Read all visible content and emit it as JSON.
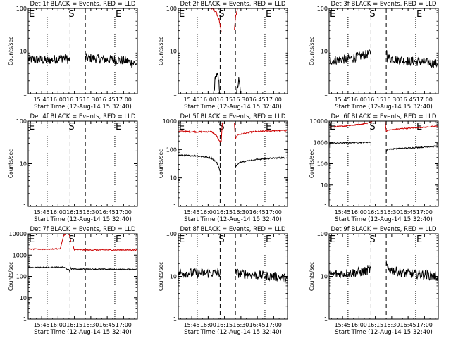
{
  "figure": {
    "xlabel": "Start Time (12-Aug-14 15:32:40)",
    "ylabel": "Counts/sec",
    "xticks": [
      "15:45",
      "16:00",
      "16:15",
      "16:30",
      "16:45",
      "17:00"
    ],
    "markers": {
      "left": "E",
      "middle": "S",
      "right": "E"
    },
    "colors": {
      "events": "#000000",
      "lld": "#cc0000"
    }
  },
  "chart_data": [
    {
      "type": "line",
      "title": "Det 1f BLACK = Events, RED = LLD",
      "x_range": [
        "15:32:40",
        "17:12:40"
      ],
      "y_scale": "log",
      "ylim": [
        1,
        100
      ],
      "yticks": [
        "1",
        "10",
        "100"
      ],
      "vlines": {
        "dotted": [
          "15:50",
          "16:52"
        ],
        "dashed": [
          "16:11",
          "16:25"
        ]
      },
      "series": [
        {
          "color": "black",
          "segments": [
            {
              "x": [
                "15:33",
                "15:50",
                "16:05",
                "16:11"
              ],
              "y": [
                6.5,
                6,
                7,
                6
              ]
            },
            {
              "x": [
                "16:25",
                "16:40",
                "17:00",
                "17:12"
              ],
              "y": [
                7,
                6.5,
                6,
                5
              ]
            }
          ]
        }
      ]
    },
    {
      "type": "line",
      "title": "Det 2f BLACK = Events, RED = LLD",
      "x_range": [
        "15:32:40",
        "17:12:40"
      ],
      "y_scale": "log",
      "ylim": [
        1,
        100
      ],
      "yticks": [
        "1",
        "10",
        "100"
      ],
      "vlines": {
        "dotted": [
          "15:50",
          "16:52"
        ],
        "dashed": [
          "16:11",
          "16:25"
        ]
      },
      "series": [
        {
          "color": "red",
          "segments": [
            {
              "x": [
                "16:03",
                "16:07",
                "16:10",
                "16:12"
              ],
              "y": [
                100,
                85,
                55,
                28
              ]
            },
            {
              "x": [
                "16:24",
                "16:25",
                "16:27"
              ],
              "y": [
                30,
                60,
                100
              ]
            }
          ]
        },
        {
          "color": "black",
          "segments": [
            {
              "x": [
                "16:05",
                "16:07",
                "16:09",
                "16:11"
              ],
              "y": [
                1,
                2.8,
                2.5,
                1
              ]
            },
            {
              "x": [
                "16:26",
                "16:28",
                "16:30"
              ],
              "y": [
                1,
                2,
                1
              ]
            }
          ]
        }
      ]
    },
    {
      "type": "line",
      "title": "Det 3f BLACK = Events, RED = LLD",
      "x_range": [
        "15:32:40",
        "17:12:40"
      ],
      "y_scale": "log",
      "ylim": [
        1,
        100
      ],
      "yticks": [
        "1",
        "10",
        "100"
      ],
      "vlines": {
        "dotted": [
          "15:50",
          "16:52"
        ],
        "dashed": [
          "16:11",
          "16:25"
        ]
      },
      "series": [
        {
          "color": "black",
          "segments": [
            {
              "x": [
                "15:33",
                "15:50",
                "16:05",
                "16:11"
              ],
              "y": [
                6,
                6.5,
                8,
                9
              ]
            },
            {
              "x": [
                "16:25",
                "16:26",
                "16:40",
                "17:00",
                "17:12"
              ],
              "y": [
                12,
                7,
                6,
                5.5,
                5
              ]
            }
          ]
        }
      ]
    },
    {
      "type": "line",
      "title": "Det 4f BLACK = Events, RED = LLD",
      "x_range": [
        "15:32:40",
        "17:12:40"
      ],
      "y_scale": "log",
      "ylim": [
        1,
        100
      ],
      "yticks": [
        "1",
        "10",
        "100"
      ],
      "vlines": {
        "dotted": [
          "15:50",
          "16:52"
        ],
        "dashed": [
          "16:11",
          "16:25"
        ]
      },
      "series": []
    },
    {
      "type": "line",
      "title": "Det 5f BLACK = Events, RED = LLD",
      "x_range": [
        "15:32:40",
        "17:12:40"
      ],
      "y_scale": "log",
      "ylim": [
        1,
        1000
      ],
      "yticks": [
        "1",
        "10",
        "100",
        "1000"
      ],
      "vlines": {
        "dotted": [
          "15:50",
          "16:52"
        ],
        "dashed": [
          "16:11",
          "16:25"
        ]
      },
      "series": [
        {
          "color": "red",
          "segments": [
            {
              "x": [
                "15:33",
                "15:50",
                "16:03",
                "16:08",
                "16:10",
                "16:12",
                "16:13"
              ],
              "y": [
                440,
                420,
                430,
                300,
                200,
                190,
                900
              ]
            },
            {
              "x": [
                "16:24",
                "16:25",
                "16:27",
                "16:40",
                "17:00",
                "17:12"
              ],
              "y": [
                900,
                240,
                330,
                420,
                460,
                470
              ]
            }
          ]
        },
        {
          "color": "black",
          "segments": [
            {
              "x": [
                "15:33",
                "15:50",
                "16:03",
                "16:08",
                "16:11"
              ],
              "y": [
                63,
                60,
                50,
                35,
                17
              ]
            },
            {
              "x": [
                "16:25",
                "16:30",
                "16:45",
                "17:00",
                "17:12"
              ],
              "y": [
                25,
                37,
                45,
                50,
                52
              ]
            }
          ]
        }
      ]
    },
    {
      "type": "line",
      "title": "Det 6f BLACK = Events, RED = LLD",
      "x_range": [
        "15:32:40",
        "17:12:40"
      ],
      "y_scale": "log",
      "ylim": [
        1,
        10000
      ],
      "yticks": [
        "1",
        "10",
        "100",
        "1000",
        "10000"
      ],
      "vlines": {
        "dotted": [
          "15:50",
          "16:52"
        ],
        "dashed": [
          "16:11",
          "16:25"
        ]
      },
      "series": [
        {
          "color": "red",
          "segments": [
            {
              "x": [
                "15:33",
                "15:50",
                "16:05",
                "16:10",
                "16:12",
                "16:13"
              ],
              "y": [
                5200,
                6000,
                7500,
                8500,
                10000,
                10000
              ]
            },
            {
              "x": [
                "16:24",
                "16:25",
                "16:27",
                "16:40",
                "17:00",
                "17:12"
              ],
              "y": [
                10000,
                3400,
                3800,
                4500,
                5200,
                5800
              ]
            }
          ]
        },
        {
          "color": "black",
          "segments": [
            {
              "x": [
                "15:33",
                "15:50",
                "16:05",
                "16:11"
              ],
              "y": [
                920,
                960,
                1000,
                1050
              ]
            },
            {
              "x": [
                "16:25",
                "16:26",
                "16:40",
                "17:00",
                "17:12"
              ],
              "y": [
                350,
                480,
                530,
                600,
                680
              ]
            }
          ]
        }
      ]
    },
    {
      "type": "line",
      "title": "Det 7f BLACK = Events, RED = LLD",
      "x_range": [
        "15:32:40",
        "17:12:40"
      ],
      "y_scale": "log",
      "ylim": [
        1,
        10000
      ],
      "yticks": [
        "1",
        "10",
        "100",
        "1000",
        "10000"
      ],
      "vlines": {
        "dotted": [
          "15:50",
          "16:52"
        ],
        "dashed": [
          "16:11",
          "16:25"
        ]
      },
      "series": [
        {
          "color": "red",
          "segments": [
            {
              "x": [
                "15:33",
                "15:50",
                "16:02",
                "16:03",
                "16:05",
                "16:07",
                "16:10",
                "16:12"
              ],
              "y": [
                1900,
                1900,
                2000,
                3000,
                8000,
                10000,
                10000,
                4000
              ]
            },
            {
              "x": [
                "16:14",
                "16:15",
                "16:30",
                "16:50",
                "17:12"
              ],
              "y": [
                2500,
                1800,
                1750,
                1750,
                1750
              ]
            }
          ]
        },
        {
          "color": "black",
          "segments": [
            {
              "x": [
                "15:33",
                "15:50",
                "16:05",
                "16:10",
                "16:11"
              ],
              "y": [
                260,
                265,
                270,
                200,
                150
              ]
            },
            {
              "x": [
                "16:11",
                "16:12",
                "16:30",
                "16:50",
                "17:12"
              ],
              "y": [
                300,
                225,
                220,
                215,
                215
              ]
            }
          ]
        }
      ]
    },
    {
      "type": "line",
      "title": "Det 8f BLACK = Events, RED = LLD",
      "x_range": [
        "15:32:40",
        "17:12:40"
      ],
      "y_scale": "log",
      "ylim": [
        1,
        100
      ],
      "yticks": [
        "1",
        "10",
        "100"
      ],
      "vlines": {
        "dotted": [
          "15:50",
          "16:52"
        ],
        "dashed": [
          "16:11",
          "16:25"
        ]
      },
      "series": [
        {
          "color": "black",
          "segments": [
            {
              "x": [
                "15:33",
                "15:50",
                "16:05",
                "16:11"
              ],
              "y": [
                12,
                12,
                12,
                12
              ]
            },
            {
              "x": [
                "16:25",
                "16:40",
                "17:00",
                "17:12"
              ],
              "y": [
                12,
                11,
                10,
                9
              ]
            }
          ]
        }
      ]
    },
    {
      "type": "line",
      "title": "Det 9f BLACK = Events, RED = LLD",
      "x_range": [
        "15:32:40",
        "17:12:40"
      ],
      "y_scale": "log",
      "ylim": [
        1,
        100
      ],
      "yticks": [
        "1",
        "10",
        "100"
      ],
      "vlines": {
        "dotted": [
          "15:50",
          "16:52"
        ],
        "dashed": [
          "16:11",
          "16:25"
        ]
      },
      "series": [
        {
          "color": "black",
          "segments": [
            {
              "x": [
                "15:33",
                "15:50",
                "16:05",
                "16:11"
              ],
              "y": [
                11,
                12,
                13,
                15
              ]
            },
            {
              "x": [
                "16:25",
                "16:26",
                "16:40",
                "17:00",
                "17:12"
              ],
              "y": [
                20,
                15,
                12,
                11,
                10
              ]
            }
          ]
        }
      ]
    }
  ]
}
